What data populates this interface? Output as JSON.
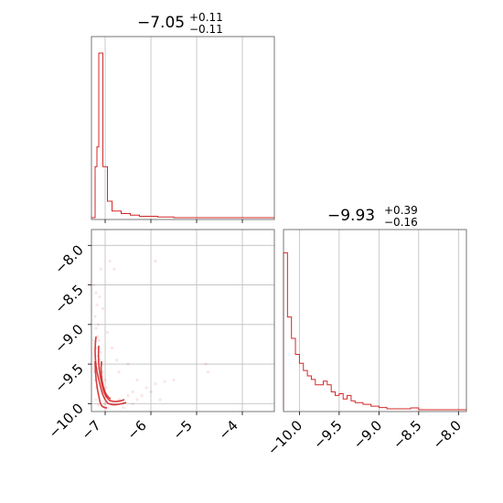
{
  "chart_data": [
    {
      "type": "histogram",
      "panel": "top-left",
      "title": {
        "main": "−7.05",
        "sup": "+0.11",
        "sub": "−0.11"
      },
      "xlim": [
        -7.3,
        -3.3
      ],
      "xticks": [
        -7,
        -6,
        -5,
        -4
      ],
      "bins": [
        {
          "x0": -7.3,
          "x1": -7.22,
          "h": 0.0
        },
        {
          "x0": -7.22,
          "x1": -7.18,
          "h": 0.31
        },
        {
          "x0": -7.18,
          "x1": -7.14,
          "h": 0.43
        },
        {
          "x0": -7.14,
          "x1": -7.05,
          "h": 1.0
        },
        {
          "x0": -7.05,
          "x1": -6.95,
          "h": 0.31
        },
        {
          "x0": -6.95,
          "x1": -6.85,
          "h": 0.1
        },
        {
          "x0": -6.85,
          "x1": -6.65,
          "h": 0.04
        },
        {
          "x0": -6.65,
          "x1": -6.45,
          "h": 0.025
        },
        {
          "x0": -6.45,
          "x1": -6.25,
          "h": 0.015
        },
        {
          "x0": -6.25,
          "x1": -5.85,
          "h": 0.008
        },
        {
          "x0": -5.85,
          "x1": -5.5,
          "h": 0.004
        },
        {
          "x0": -5.5,
          "x1": -3.3,
          "h": 0.0
        }
      ]
    },
    {
      "type": "histogram",
      "panel": "bottom-right",
      "title": {
        "main": "−9.93",
        "sup": "+0.39",
        "sub": "−0.16"
      },
      "xlim": [
        -10.2,
        -7.9
      ],
      "xticks": [
        -10.0,
        -9.5,
        -9.0,
        -8.5,
        -8.0
      ],
      "xticklabels": [
        "−10.0",
        "−9.5",
        "−9.0",
        "−8.5",
        "−8.0"
      ],
      "bins": [
        {
          "x0": -10.2,
          "x1": -10.15,
          "h": 0.88
        },
        {
          "x0": -10.15,
          "x1": -10.1,
          "h": 0.52
        },
        {
          "x0": -10.1,
          "x1": -10.05,
          "h": 0.4
        },
        {
          "x0": -10.05,
          "x1": -10.0,
          "h": 0.31
        },
        {
          "x0": -10.0,
          "x1": -9.95,
          "h": 0.26
        },
        {
          "x0": -9.95,
          "x1": -9.9,
          "h": 0.22
        },
        {
          "x0": -9.9,
          "x1": -9.85,
          "h": 0.19
        },
        {
          "x0": -9.85,
          "x1": -9.8,
          "h": 0.17
        },
        {
          "x0": -9.8,
          "x1": -9.75,
          "h": 0.14
        },
        {
          "x0": -9.75,
          "x1": -9.7,
          "h": 0.14
        },
        {
          "x0": -9.7,
          "x1": -9.65,
          "h": 0.16
        },
        {
          "x0": -9.65,
          "x1": -9.6,
          "h": 0.14
        },
        {
          "x0": -9.6,
          "x1": -9.55,
          "h": 0.1
        },
        {
          "x0": -9.55,
          "x1": -9.5,
          "h": 0.08
        },
        {
          "x0": -9.5,
          "x1": -9.45,
          "h": 0.09
        },
        {
          "x0": -9.45,
          "x1": -9.4,
          "h": 0.06
        },
        {
          "x0": -9.4,
          "x1": -9.35,
          "h": 0.08
        },
        {
          "x0": -9.35,
          "x1": -9.3,
          "h": 0.05
        },
        {
          "x0": -9.3,
          "x1": -9.2,
          "h": 0.04
        },
        {
          "x0": -9.2,
          "x1": -9.1,
          "h": 0.03
        },
        {
          "x0": -9.1,
          "x1": -9.0,
          "h": 0.02
        },
        {
          "x0": -9.0,
          "x1": -8.9,
          "h": 0.012
        },
        {
          "x0": -8.9,
          "x1": -8.6,
          "h": 0.005
        },
        {
          "x0": -8.6,
          "x1": -8.5,
          "h": 0.01
        },
        {
          "x0": -8.5,
          "x1": -7.9,
          "h": 0.0
        }
      ]
    },
    {
      "type": "scatter",
      "panel": "bottom-left",
      "xlim": [
        -7.3,
        -3.3
      ],
      "ylim": [
        -10.1,
        -7.8
      ],
      "xticks": [
        -7,
        -6,
        -5,
        -4
      ],
      "yticks": [
        -10.0,
        -9.5,
        -9.0,
        -8.5,
        -8.0
      ],
      "yticklabels": [
        "−10.0",
        "−9.5",
        "−9.0",
        "−8.5",
        "−8.0"
      ],
      "points": [
        [
          -7.2,
          -8.6
        ],
        [
          -7.18,
          -8.75
        ],
        [
          -7.22,
          -8.9
        ],
        [
          -7.15,
          -9.0
        ],
        [
          -7.2,
          -9.05
        ],
        [
          -7.17,
          -9.15
        ],
        [
          -7.13,
          -9.2
        ],
        [
          -7.19,
          -9.3
        ],
        [
          -7.1,
          -9.35
        ],
        [
          -7.16,
          -9.4
        ],
        [
          -7.12,
          -9.45
        ],
        [
          -7.08,
          -9.5
        ],
        [
          -7.14,
          -9.55
        ],
        [
          -7.05,
          -9.6
        ],
        [
          -7.1,
          -9.65
        ],
        [
          -7.0,
          -9.7
        ],
        [
          -7.06,
          -9.75
        ],
        [
          -6.98,
          -9.8
        ],
        [
          -7.03,
          -9.85
        ],
        [
          -6.95,
          -9.9
        ],
        [
          -6.9,
          -9.95
        ],
        [
          -7.0,
          -10.0
        ],
        [
          -6.85,
          -9.98
        ],
        [
          -6.8,
          -10.02
        ],
        [
          -6.7,
          -9.95
        ],
        [
          -6.6,
          -10.0
        ],
        [
          -6.5,
          -9.9
        ],
        [
          -6.4,
          -9.85
        ],
        [
          -6.3,
          -9.95
        ],
        [
          -6.2,
          -9.9
        ],
        [
          -6.1,
          -9.8
        ],
        [
          -6.0,
          -9.85
        ],
        [
          -5.9,
          -9.75
        ],
        [
          -5.7,
          -9.72
        ],
        [
          -5.5,
          -9.7
        ],
        [
          -6.9,
          -8.2
        ],
        [
          -6.8,
          -8.3
        ],
        [
          -5.9,
          -8.2
        ],
        [
          -6.5,
          -9.5
        ],
        [
          -6.7,
          -9.6
        ],
        [
          -6.3,
          -9.7
        ],
        [
          -7.1,
          -8.3
        ],
        [
          -7.25,
          -8.5
        ],
        [
          -7.05,
          -8.8
        ],
        [
          -6.95,
          -9.1
        ],
        [
          -6.85,
          -9.3
        ],
        [
          -6.75,
          -9.45
        ],
        [
          -4.8,
          -9.5
        ],
        [
          -4.75,
          -9.6
        ],
        [
          -7.2,
          -9.95
        ],
        [
          -7.15,
          -10.02
        ],
        [
          -6.95,
          -10.05
        ],
        [
          -6.6,
          -10.05
        ],
        [
          -6.4,
          -10.0
        ],
        [
          -5.8,
          -9.95
        ],
        [
          -7.23,
          -9.6
        ],
        [
          -7.21,
          -9.7
        ],
        [
          -7.19,
          -9.8
        ],
        [
          -7.24,
          -9.2
        ],
        [
          -7.12,
          -8.65
        ]
      ]
    }
  ]
}
